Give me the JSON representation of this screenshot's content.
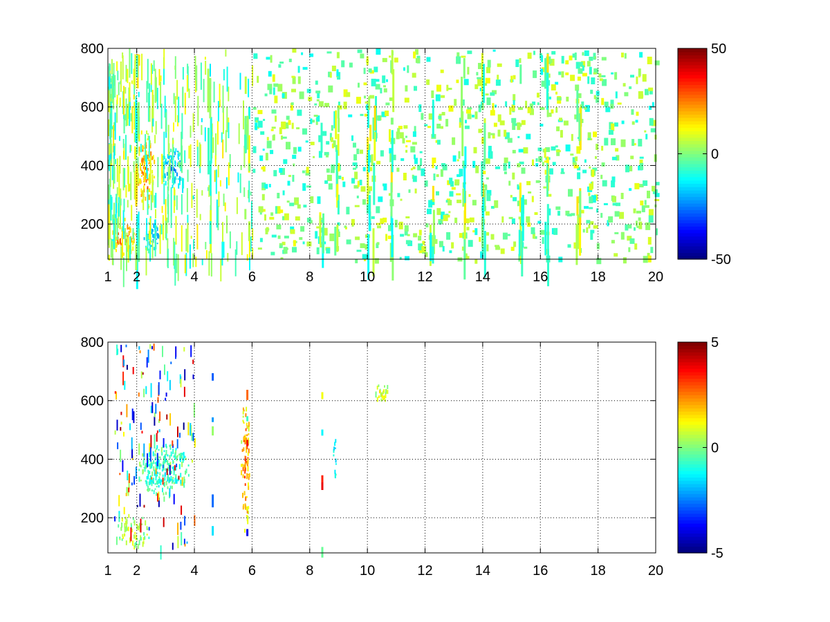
{
  "chart_data": [
    {
      "type": "heatmap",
      "title": "",
      "xlabel": "",
      "ylabel": "",
      "xlim": [
        1,
        20
      ],
      "ylim": [
        80,
        800
      ],
      "xticks": [
        1,
        2,
        4,
        6,
        8,
        10,
        12,
        14,
        16,
        18,
        20
      ],
      "yticks": [
        200,
        400,
        600,
        800
      ],
      "grid": true,
      "colormap": "jet",
      "clim": [
        -50,
        50
      ],
      "colorbar_ticks": [
        -50,
        0,
        50
      ],
      "sparsity_note": "dense clusters near x 1.8-4, sparse vertical streaks 4-20",
      "clusters": [
        {
          "x": [
            1.1,
            2.0
          ],
          "y": [
            100,
            200
          ],
          "value": 35
        },
        {
          "x": [
            2.0,
            2.6
          ],
          "y": [
            250,
            520
          ],
          "value": 30
        },
        {
          "x": [
            2.8,
            3.6
          ],
          "y": [
            320,
            470
          ],
          "value": -25
        },
        {
          "x": [
            2.2,
            2.8
          ],
          "y": [
            110,
            210
          ],
          "value": -25
        }
      ]
    },
    {
      "type": "heatmap",
      "title": "",
      "xlabel": "",
      "ylabel": "",
      "xlim": [
        1,
        20
      ],
      "ylim": [
        80,
        800
      ],
      "xticks": [
        1,
        2,
        4,
        6,
        8,
        10,
        12,
        14,
        16,
        18,
        20
      ],
      "yticks": [
        200,
        400,
        600,
        800
      ],
      "grid": true,
      "colormap": "jet",
      "clim": [
        -5,
        5
      ],
      "colorbar_ticks": [
        -5,
        0,
        5
      ],
      "clusters": [
        {
          "x": [
            2.0,
            3.8
          ],
          "y": [
            270,
            460
          ],
          "value": -1
        },
        {
          "x": [
            1.3,
            2.4
          ],
          "y": [
            100,
            220
          ],
          "value": 0.5
        },
        {
          "x": [
            5.6,
            5.9
          ],
          "y": [
            150,
            620
          ],
          "value": 3
        },
        {
          "x": [
            8.8,
            8.9
          ],
          "y": [
            320,
            480
          ],
          "value": -2
        },
        {
          "x": [
            10.2,
            10.8
          ],
          "y": [
            600,
            660
          ],
          "value": 1
        }
      ]
    }
  ]
}
